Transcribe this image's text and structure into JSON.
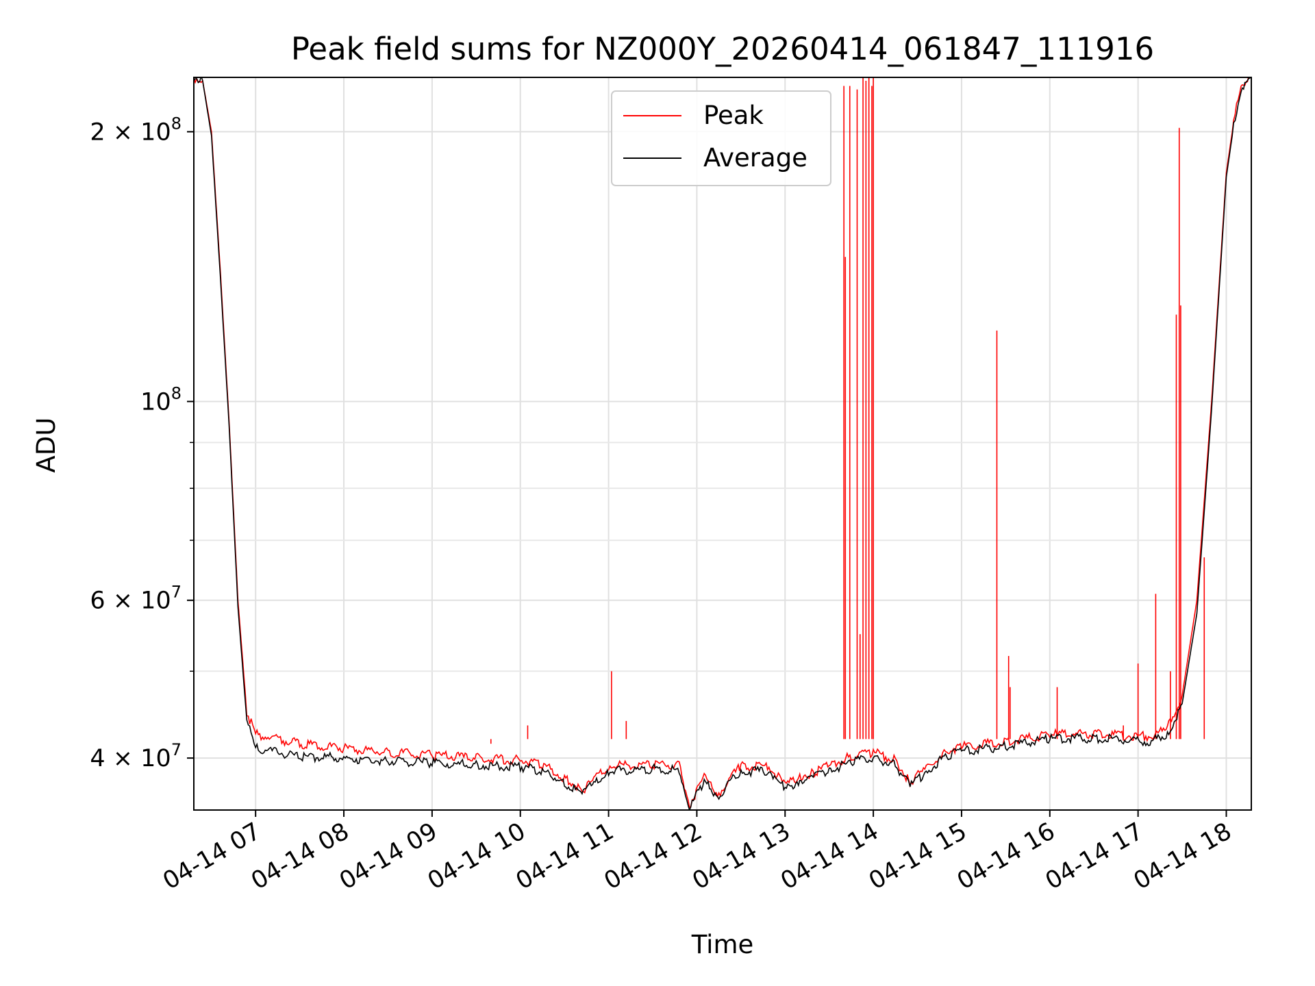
{
  "chart_data": {
    "type": "line",
    "title": "Peak field sums for NZ000Y_20260414_061847_111916",
    "xlabel": "Time",
    "ylabel": "ADU",
    "yscale": "log",
    "ylim": [
      35000000,
      230000000
    ],
    "xlim": [
      "04-14 06:18",
      "04-14 18:17"
    ],
    "grid": true,
    "legend_position": "top-center",
    "x_ticks": [
      "04-14 07",
      "04-14 08",
      "04-14 09",
      "04-14 10",
      "04-14 11",
      "04-14 12",
      "04-14 13",
      "04-14 14",
      "04-14 15",
      "04-14 16",
      "04-14 17",
      "04-14 18"
    ],
    "y_ticks": [
      {
        "value": 200000000,
        "mantissa": "2",
        "exponent": "8"
      },
      {
        "value": 100000000,
        "mantissa": "",
        "exponent": "8"
      },
      {
        "value": 60000000,
        "mantissa": "6",
        "exponent": "7"
      },
      {
        "value": 40000000,
        "mantissa": "4",
        "exponent": "7"
      }
    ],
    "series": [
      {
        "name": "Peak",
        "color": "#ff0000",
        "points": [
          [
            "04-14 06:18",
            230000000
          ],
          [
            "04-14 06:24",
            228000000
          ],
          [
            "04-14 06:30",
            200000000
          ],
          [
            "04-14 06:36",
            140000000
          ],
          [
            "04-14 06:42",
            95000000
          ],
          [
            "04-14 06:48",
            60000000
          ],
          [
            "04-14 06:54",
            45000000
          ],
          [
            "04-14 07:00",
            42500000
          ],
          [
            "04-14 07:30",
            41500000
          ],
          [
            "04-14 08:00",
            41000000
          ],
          [
            "04-14 08:30",
            40600000
          ],
          [
            "04-14 09:00",
            40300000
          ],
          [
            "04-14 09:30",
            40000000
          ],
          [
            "04-14 10:00",
            39800000
          ],
          [
            "04-14 10:15",
            39300000
          ],
          [
            "04-14 10:30",
            38000000
          ],
          [
            "04-14 10:42",
            36800000
          ],
          [
            "04-14 10:50",
            37800000
          ],
          [
            "04-14 11:00",
            39200000
          ],
          [
            "04-14 11:30",
            39400000
          ],
          [
            "04-14 11:48",
            39200000
          ],
          [
            "04-14 11:55",
            35500000
          ],
          [
            "04-14 12:05",
            38000000
          ],
          [
            "04-14 12:15",
            36500000
          ],
          [
            "04-14 12:20",
            37500000
          ],
          [
            "04-14 12:30",
            39200000
          ],
          [
            "04-14 12:50",
            39100000
          ],
          [
            "04-14 13:00",
            37200000
          ],
          [
            "04-14 13:10",
            38200000
          ],
          [
            "04-14 13:20",
            38500000
          ],
          [
            "04-14 13:30",
            39200000
          ],
          [
            "04-14 13:45",
            40200000
          ],
          [
            "04-14 14:00",
            40600000
          ],
          [
            "04-14 14:15",
            39800000
          ],
          [
            "04-14 14:25",
            37600000
          ],
          [
            "04-14 14:35",
            38800000
          ],
          [
            "04-14 14:50",
            40800000
          ],
          [
            "04-14 15:00",
            41200000
          ],
          [
            "04-14 15:30",
            41700000
          ],
          [
            "04-14 16:00",
            42500000
          ],
          [
            "04-14 16:30",
            42600000
          ],
          [
            "04-14 16:50",
            42400000
          ],
          [
            "04-14 17:10",
            42300000
          ],
          [
            "04-14 17:20",
            43200000
          ],
          [
            "04-14 17:30",
            47000000
          ],
          [
            "04-14 17:40",
            60000000
          ],
          [
            "04-14 17:50",
            100000000
          ],
          [
            "04-14 18:00",
            180000000
          ],
          [
            "04-14 18:05",
            205000000
          ],
          [
            "04-14 18:10",
            225000000
          ],
          [
            "04-14 18:17",
            230000000
          ]
        ],
        "spikes": [
          [
            "04-14 09:40",
            41500000
          ],
          [
            "04-14 10:05",
            43500000
          ],
          [
            "04-14 11:02",
            50000000
          ],
          [
            "04-14 11:12",
            44000000
          ],
          [
            "04-14 13:40",
            225000000
          ],
          [
            "04-14 13:41",
            145000000
          ],
          [
            "04-14 13:44",
            225000000
          ],
          [
            "04-14 13:49",
            223000000
          ],
          [
            "04-14 13:51",
            55000000
          ],
          [
            "04-14 13:53",
            230000000
          ],
          [
            "04-14 13:55",
            228000000
          ],
          [
            "04-14 13:57",
            230000000
          ],
          [
            "04-14 13:59",
            225000000
          ],
          [
            "04-14 14:00",
            230000000
          ],
          [
            "04-14 15:24",
            120000000
          ],
          [
            "04-14 15:32",
            52000000
          ],
          [
            "04-14 15:33",
            48000000
          ],
          [
            "04-14 16:05",
            48000000
          ],
          [
            "04-14 16:50",
            43500000
          ],
          [
            "04-14 17:00",
            51000000
          ],
          [
            "04-14 17:12",
            61000000
          ],
          [
            "04-14 17:22",
            50000000
          ],
          [
            "04-14 17:26",
            125000000
          ],
          [
            "04-14 17:28",
            202000000
          ],
          [
            "04-14 17:29",
            128000000
          ],
          [
            "04-14 17:45",
            67000000
          ]
        ]
      },
      {
        "name": "Average",
        "color": "#000000",
        "points": [
          [
            "04-14 06:18",
            230000000
          ],
          [
            "04-14 06:24",
            228000000
          ],
          [
            "04-14 06:30",
            198000000
          ],
          [
            "04-14 06:36",
            138000000
          ],
          [
            "04-14 06:42",
            94000000
          ],
          [
            "04-14 06:48",
            59000000
          ],
          [
            "04-14 06:54",
            44000000
          ],
          [
            "04-14 07:00",
            41000000
          ],
          [
            "04-14 07:30",
            40200000
          ],
          [
            "04-14 08:00",
            40000000
          ],
          [
            "04-14 08:30",
            39700000
          ],
          [
            "04-14 09:00",
            39500000
          ],
          [
            "04-14 09:30",
            39300000
          ],
          [
            "04-14 10:00",
            39100000
          ],
          [
            "04-14 10:15",
            38700000
          ],
          [
            "04-14 10:30",
            37500000
          ],
          [
            "04-14 10:42",
            36500000
          ],
          [
            "04-14 10:50",
            37400000
          ],
          [
            "04-14 11:00",
            38700000
          ],
          [
            "04-14 11:30",
            38900000
          ],
          [
            "04-14 11:48",
            38800000
          ],
          [
            "04-14 11:55",
            35200000
          ],
          [
            "04-14 12:05",
            37600000
          ],
          [
            "04-14 12:15",
            36200000
          ],
          [
            "04-14 12:20",
            37200000
          ],
          [
            "04-14 12:30",
            38700000
          ],
          [
            "04-14 12:50",
            38600000
          ],
          [
            "04-14 13:00",
            36900000
          ],
          [
            "04-14 13:10",
            37800000
          ],
          [
            "04-14 13:20",
            38100000
          ],
          [
            "04-14 13:30",
            38700000
          ],
          [
            "04-14 13:45",
            39600000
          ],
          [
            "04-14 14:00",
            40000000
          ],
          [
            "04-14 14:15",
            39300000
          ],
          [
            "04-14 14:25",
            37300000
          ],
          [
            "04-14 14:35",
            38400000
          ],
          [
            "04-14 14:50",
            40300000
          ],
          [
            "04-14 15:00",
            40700000
          ],
          [
            "04-14 15:30",
            41200000
          ],
          [
            "04-14 16:00",
            42000000
          ],
          [
            "04-14 16:30",
            42100000
          ],
          [
            "04-14 16:50",
            41900000
          ],
          [
            "04-14 17:10",
            41800000
          ],
          [
            "04-14 17:20",
            42500000
          ],
          [
            "04-14 17:30",
            46000000
          ],
          [
            "04-14 17:40",
            58000000
          ],
          [
            "04-14 17:50",
            98000000
          ],
          [
            "04-14 18:00",
            178000000
          ],
          [
            "04-14 18:05",
            203000000
          ],
          [
            "04-14 18:10",
            224000000
          ],
          [
            "04-14 18:17",
            230000000
          ]
        ]
      }
    ]
  }
}
